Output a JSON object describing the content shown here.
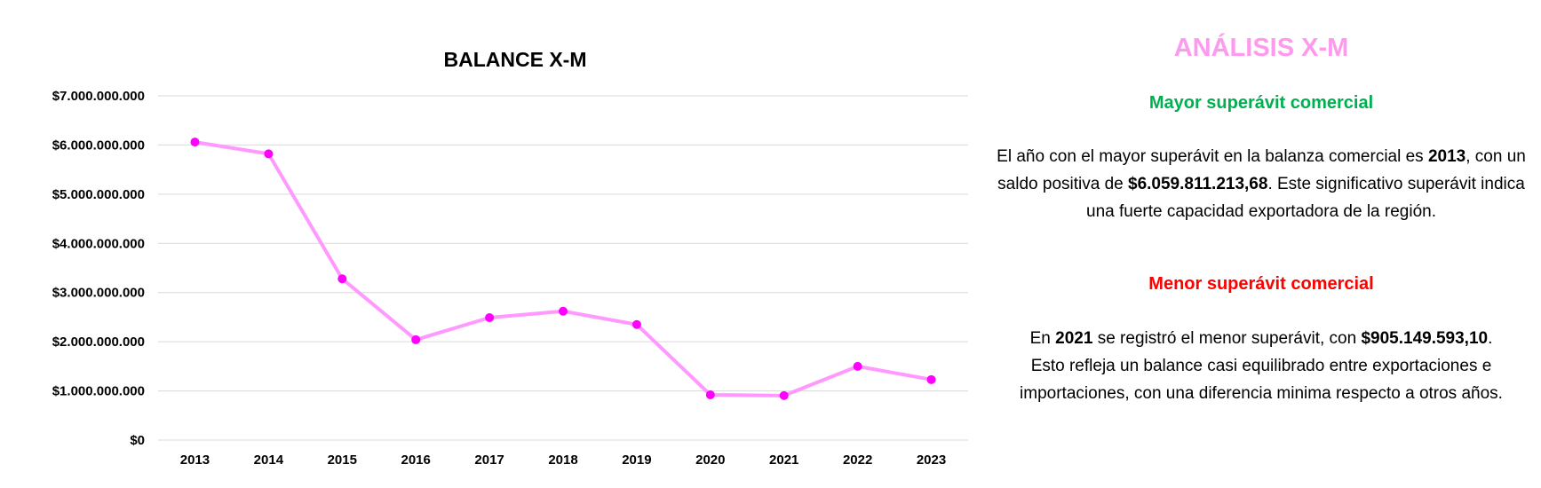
{
  "chart_data": {
    "type": "line",
    "title": "BALANCE X-M",
    "xlabel": "",
    "ylabel": "",
    "categories": [
      "2013",
      "2014",
      "2015",
      "2016",
      "2017",
      "2018",
      "2019",
      "2020",
      "2021",
      "2022",
      "2023"
    ],
    "series": [
      {
        "values": [
          6059811213.68,
          5820000000,
          3280000000,
          2040000000,
          2490000000,
          2620000000,
          2350000000,
          920000000,
          905149593.1,
          1500000000,
          1230000000
        ]
      }
    ],
    "ylim": [
      0,
      7000000000
    ],
    "yticks": [
      0,
      1000000000,
      2000000000,
      3000000000,
      4000000000,
      5000000000,
      6000000000,
      7000000000
    ],
    "ytick_labels": [
      "$0",
      "$1.000.000.000",
      "$2.000.000.000",
      "$3.000.000.000",
      "$4.000.000.000",
      "$5.000.000.000",
      "$6.000.000.000",
      "$7.000.000.000"
    ],
    "grid": true,
    "legend": "none",
    "line_color": "#ff99ff",
    "marker_color": "#ff00ff"
  },
  "analysis": {
    "title": "ANÁLISIS X-M",
    "title_color": "#ff99ee",
    "max_heading": "Mayor superávit comercial",
    "max_heading_color": "#00b050",
    "max_text": {
      "t1": "El año con el mayor superávit en la balanza comercial es ",
      "year": "2013",
      "t2": ", con un saldo positiva de ",
      "amount": "$6.059.811.213,68",
      "t3": ". Este significativo superávit indica una fuerte capacidad exportadora de la región."
    },
    "min_heading": "Menor superávit comercial",
    "min_heading_color": "#ff0000",
    "min_text": {
      "t1": "En ",
      "year": "2021",
      "t2": " se registró el menor superávit, con ",
      "amount": "$905.149.593,10",
      "t3": ". Esto refleja un balance casi equilibrado entre exportaciones e importaciones, con una diferencia minima respecto a otros años."
    }
  }
}
